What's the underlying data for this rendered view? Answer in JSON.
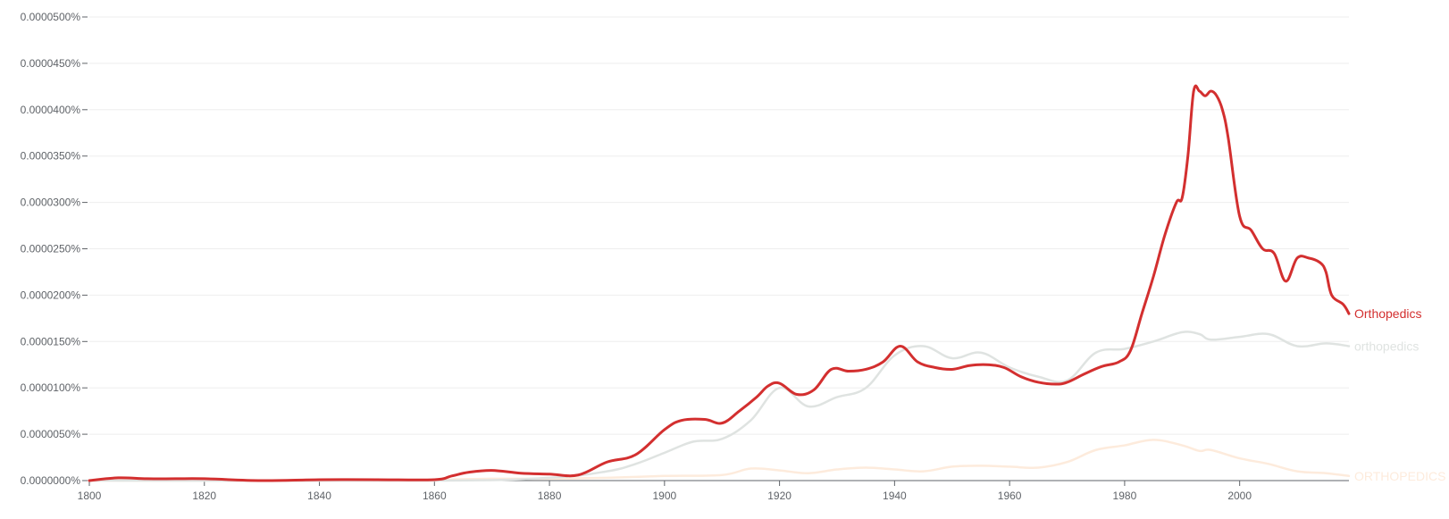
{
  "chart_data": {
    "type": "line",
    "title": "",
    "xlabel": "",
    "ylabel": "",
    "xlim": [
      1800,
      2019
    ],
    "ylim": [
      0,
      5e-05
    ],
    "grid": true,
    "legend": "end-of-line labels",
    "y_ticks": [
      {
        "value": 0.0,
        "label": "0.0000000%"
      },
      {
        "value": 5e-06,
        "label": "0.0000050%"
      },
      {
        "value": 1e-05,
        "label": "0.0000100%"
      },
      {
        "value": 1.5e-05,
        "label": "0.0000150%"
      },
      {
        "value": 2e-05,
        "label": "0.0000200%"
      },
      {
        "value": 2.5e-05,
        "label": "0.0000250%"
      },
      {
        "value": 3e-05,
        "label": "0.0000300%"
      },
      {
        "value": 3.5e-05,
        "label": "0.0000350%"
      },
      {
        "value": 4e-05,
        "label": "0.0000400%"
      },
      {
        "value": 4.5e-05,
        "label": "0.0000450%"
      },
      {
        "value": 5e-05,
        "label": "0.0000500%"
      }
    ],
    "x_ticks": [
      {
        "value": 1800,
        "label": "1800"
      },
      {
        "value": 1820,
        "label": "1820"
      },
      {
        "value": 1840,
        "label": "1840"
      },
      {
        "value": 1860,
        "label": "1860"
      },
      {
        "value": 1880,
        "label": "1880"
      },
      {
        "value": 1900,
        "label": "1900"
      },
      {
        "value": 1920,
        "label": "1920"
      },
      {
        "value": 1940,
        "label": "1940"
      },
      {
        "value": 1960,
        "label": "1960"
      },
      {
        "value": 1980,
        "label": "1980"
      },
      {
        "value": 2000,
        "label": "2000"
      }
    ],
    "series": [
      {
        "name": "ORTHOPEDICS",
        "color": "#fdebdc",
        "x": [
          1800,
          1810,
          1820,
          1840,
          1860,
          1870,
          1880,
          1890,
          1900,
          1910,
          1915,
          1920,
          1925,
          1930,
          1935,
          1940,
          1945,
          1950,
          1955,
          1960,
          1965,
          1970,
          1975,
          1980,
          1985,
          1990,
          1993,
          1995,
          2000,
          2005,
          2010,
          2015,
          2019
        ],
        "values": [
          0.0,
          0.0,
          0.0,
          0.0,
          1e-07,
          2e-07,
          2e-07,
          3e-07,
          5e-07,
          6e-07,
          1.3e-06,
          1.1e-06,
          8e-07,
          1.2e-06,
          1.4e-06,
          1.2e-06,
          1e-06,
          1.5e-06,
          1.6e-06,
          1.5e-06,
          1.4e-06,
          2e-06,
          3.3e-06,
          3.8e-06,
          4.4e-06,
          3.8e-06,
          3.2e-06,
          3.3e-06,
          2.4e-06,
          1.8e-06,
          1e-06,
          8e-07,
          5e-07
        ]
      },
      {
        "name": "orthopedics",
        "color": "#dfe3e1",
        "x": [
          1800,
          1860,
          1880,
          1890,
          1895,
          1900,
          1905,
          1910,
          1915,
          1920,
          1925,
          1930,
          1935,
          1940,
          1945,
          1950,
          1955,
          1960,
          1965,
          1970,
          1975,
          1980,
          1985,
          1990,
          1993,
          1995,
          2000,
          2005,
          2010,
          2015,
          2019
        ],
        "values": [
          0.0,
          0.0,
          3e-07,
          1e-06,
          1.8e-06,
          3e-06,
          4.2e-06,
          4.5e-06,
          6.5e-06,
          1e-05,
          8e-06,
          9e-06,
          1e-05,
          1.35e-05,
          1.45e-05,
          1.32e-05,
          1.38e-05,
          1.22e-05,
          1.12e-05,
          1.08e-05,
          1.38e-05,
          1.42e-05,
          1.5e-05,
          1.6e-05,
          1.58e-05,
          1.52e-05,
          1.55e-05,
          1.58e-05,
          1.45e-05,
          1.48e-05,
          1.45e-05
        ]
      },
      {
        "name": "Orthopedics",
        "color": "#d32f2f",
        "x": [
          1800,
          1805,
          1810,
          1815,
          1820,
          1830,
          1840,
          1850,
          1860,
          1863,
          1866,
          1870,
          1875,
          1880,
          1885,
          1890,
          1895,
          1900,
          1903,
          1907,
          1910,
          1913,
          1916,
          1918,
          1920,
          1923,
          1926,
          1929,
          1932,
          1935,
          1938,
          1941,
          1944,
          1947,
          1950,
          1953,
          1956,
          1959,
          1962,
          1965,
          1968,
          1970,
          1973,
          1976,
          1979,
          1981,
          1983,
          1985,
          1987,
          1989,
          1990,
          1991,
          1992,
          1993,
          1994,
          1995,
          1996,
          1997,
          1998,
          2000,
          2002,
          2004,
          2006,
          2008,
          2010,
          2012,
          2014,
          2015,
          2016,
          2018,
          2019
        ],
        "values": [
          0.0,
          3e-07,
          2e-07,
          2e-07,
          2e-07,
          0.0,
          1e-07,
          1e-07,
          1e-07,
          5e-07,
          9e-07,
          1.1e-06,
          8e-07,
          7e-07,
          6e-07,
          2e-06,
          2.8e-06,
          5.5e-06,
          6.5e-06,
          6.6e-06,
          6.2e-06,
          7.5e-06,
          9e-06,
          1.02e-05,
          1.05e-05,
          9.3e-06,
          9.8e-06,
          1.2e-05,
          1.18e-05,
          1.2e-05,
          1.28e-05,
          1.45e-05,
          1.28e-05,
          1.22e-05,
          1.2e-05,
          1.24e-05,
          1.25e-05,
          1.22e-05,
          1.12e-05,
          1.06e-05,
          1.04e-05,
          1.06e-05,
          1.15e-05,
          1.23e-05,
          1.28e-05,
          1.4e-05,
          1.8e-05,
          2.2e-05,
          2.65e-05,
          3e-05,
          3.05e-05,
          3.5e-05,
          4.2e-05,
          4.2e-05,
          4.15e-05,
          4.2e-05,
          4.15e-05,
          4e-05,
          3.7e-05,
          2.85e-05,
          2.7e-05,
          2.5e-05,
          2.45e-05,
          2.15e-05,
          2.4e-05,
          2.4e-05,
          2.35e-05,
          2.25e-05,
          2e-05,
          1.9e-05,
          1.8e-05
        ]
      }
    ]
  }
}
